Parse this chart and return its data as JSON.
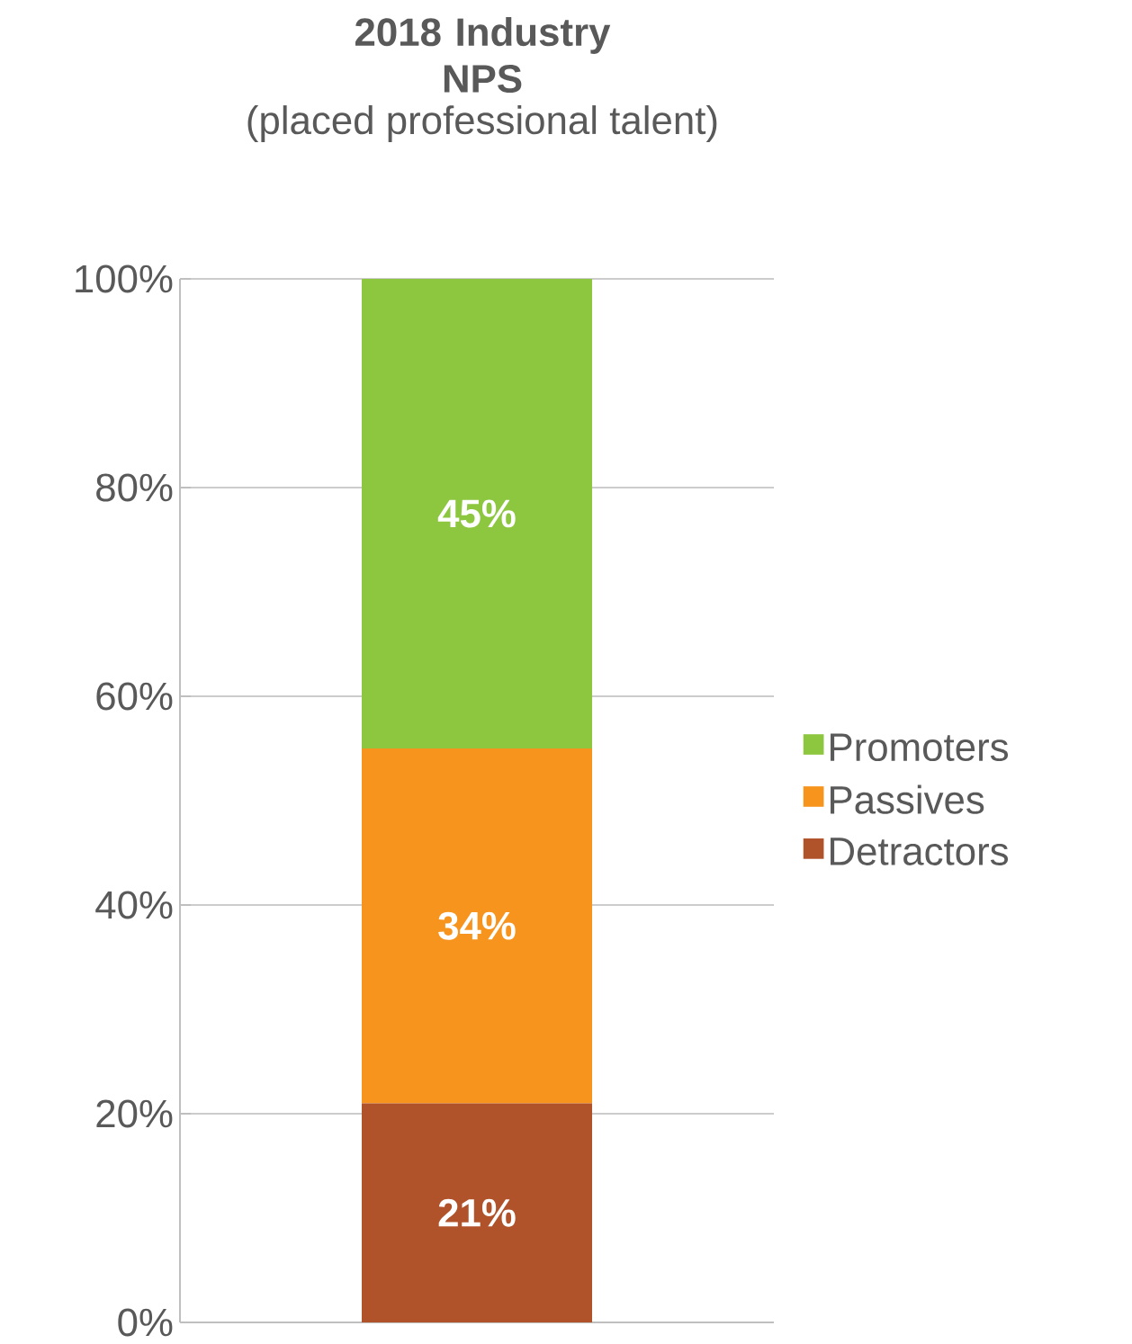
{
  "chart_data": {
    "type": "bar",
    "title": "2018 Industry NPS",
    "subtitle": "(placed professional talent)",
    "categories": [
      null
    ],
    "stacked": true,
    "series": [
      {
        "name": "Detractors",
        "color": "#b0522a",
        "values": [
          21
        ],
        "value_labels": [
          "21%"
        ]
      },
      {
        "name": "Passives",
        "color": "#f7941d",
        "values": [
          34
        ],
        "value_labels": [
          "34%"
        ]
      },
      {
        "name": "Promoters",
        "color": "#8dc63f",
        "values": [
          45
        ],
        "value_labels": [
          "45%"
        ]
      }
    ],
    "ylim": [
      0,
      100
    ],
    "yticks": [
      {
        "value": 0,
        "label": "0%"
      },
      {
        "value": 20,
        "label": "20%"
      },
      {
        "value": 40,
        "label": "40%"
      },
      {
        "value": 60,
        "label": "60%"
      },
      {
        "value": 80,
        "label": "80%"
      },
      {
        "value": 100,
        "label": "100%"
      }
    ],
    "grid": "y",
    "legend": "right"
  }
}
